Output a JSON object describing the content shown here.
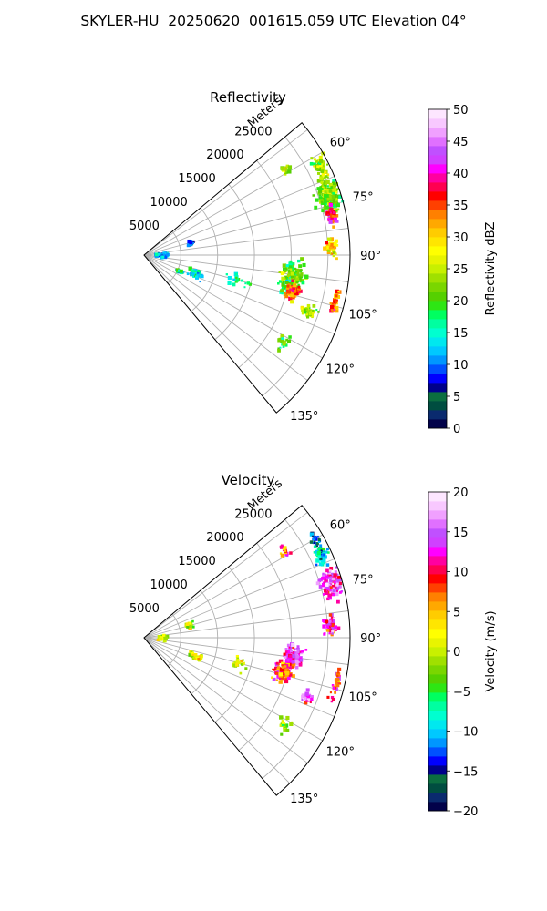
{
  "suptitle": "SKYLER-HU  20250620  001615.059 UTC Elevation 04°",
  "range_label": "Meters",
  "chart_data": [
    {
      "type": "heatmap",
      "title": "Reflectivity",
      "projection": "polar sector (PPI)",
      "theta_range_deg": [
        50,
        140
      ],
      "theta_ticks": [
        "60°",
        "75°",
        "90°",
        "105°",
        "120°",
        "135°"
      ],
      "r_range": [
        0,
        28000
      ],
      "r_ticks": [
        "5000",
        "10000",
        "15000",
        "20000",
        "25000"
      ],
      "grid": true,
      "colorbar": {
        "label": "Reflectivity dBZ",
        "range": [
          0,
          50
        ],
        "ticks": [
          "0",
          "5",
          "10",
          "15",
          "20",
          "25",
          "30",
          "35",
          "40",
          "45",
          "50"
        ],
        "colors": [
          "#02024a",
          "#0a2a6e",
          "#004d40",
          "#0b6e40",
          "#00008b",
          "#0000ff",
          "#0050ff",
          "#0096ff",
          "#00c8ff",
          "#00e8ef",
          "#00ffd0",
          "#00ffa0",
          "#00ff60",
          "#2ee614",
          "#55d000",
          "#7ad600",
          "#a0e000",
          "#c8f000",
          "#e8f400",
          "#ffff00",
          "#ffe600",
          "#ffcc00",
          "#ffa800",
          "#ff8000",
          "#ff4000",
          "#ff0000",
          "#ff0050",
          "#ff00a0",
          "#ff00ff",
          "#d040ff",
          "#c050ff",
          "#e070ff",
          "#f0a0ff",
          "#f8c8ff",
          "#fde6ff"
        ]
      },
      "echoes": [
        {
          "r": 26500,
          "theta": 72,
          "value": 22,
          "spread_r": 1500,
          "spread_t": 5,
          "n": 170
        },
        {
          "r": 26800,
          "theta": 63,
          "value": 24,
          "spread_r": 900,
          "spread_t": 3,
          "n": 60
        },
        {
          "r": 26000,
          "theta": 78,
          "value": 38,
          "spread_r": 700,
          "spread_t": 3,
          "n": 40
        },
        {
          "r": 25500,
          "theta": 88,
          "value": 30,
          "spread_r": 800,
          "spread_t": 3,
          "n": 40
        },
        {
          "r": 22500,
          "theta": 59,
          "value": 24,
          "spread_r": 600,
          "spread_t": 2,
          "n": 18
        },
        {
          "r": 20500,
          "theta": 99,
          "value": 21,
          "spread_r": 1600,
          "spread_t": 6,
          "n": 190
        },
        {
          "r": 20800,
          "theta": 104,
          "value": 34,
          "spread_r": 900,
          "spread_t": 3,
          "n": 70
        },
        {
          "r": 23500,
          "theta": 109,
          "value": 24,
          "spread_r": 1000,
          "spread_t": 2,
          "n": 35
        },
        {
          "r": 26800,
          "theta": 104,
          "value": 34,
          "spread_r": 400,
          "spread_t": 5,
          "n": 30
        },
        {
          "r": 22500,
          "theta": 122,
          "value": 20,
          "spread_r": 800,
          "spread_t": 3,
          "n": 22
        },
        {
          "r": 6500,
          "theta": 75,
          "value": 8,
          "spread_r": 500,
          "spread_t": 4,
          "n": 18
        },
        {
          "r": 2500,
          "theta": 90,
          "value": 12,
          "spread_r": 800,
          "spread_t": 8,
          "n": 30
        },
        {
          "r": 7500,
          "theta": 110,
          "value": 14,
          "spread_r": 1200,
          "spread_t": 4,
          "n": 35
        },
        {
          "r": 5500,
          "theta": 115,
          "value": 16,
          "spread_r": 800,
          "spread_t": 3,
          "n": 14
        },
        {
          "r": 13500,
          "theta": 105,
          "value": 16,
          "spread_r": 1500,
          "spread_t": 4,
          "n": 20
        }
      ]
    },
    {
      "type": "heatmap",
      "title": "Velocity",
      "projection": "polar sector (PPI)",
      "theta_range_deg": [
        50,
        140
      ],
      "theta_ticks": [
        "60°",
        "75°",
        "90°",
        "105°",
        "120°",
        "135°"
      ],
      "r_range": [
        0,
        28000
      ],
      "r_ticks": [
        "5000",
        "10000",
        "15000",
        "20000",
        "25000"
      ],
      "grid": true,
      "colorbar": {
        "label": "Velocity (m/s)",
        "range": [
          -20,
          20
        ],
        "ticks": [
          "−20",
          "−15",
          "−10",
          "−5",
          "0",
          "5",
          "10",
          "15",
          "20"
        ],
        "colors": [
          "#02024a",
          "#0a2a6e",
          "#004d40",
          "#0b6e40",
          "#00008b",
          "#0000ff",
          "#0050ff",
          "#0096ff",
          "#00c8ff",
          "#00e8ef",
          "#00ffd0",
          "#00ffa0",
          "#00ff60",
          "#2ee614",
          "#55d000",
          "#7ad600",
          "#a0e000",
          "#c8f000",
          "#e8f400",
          "#ffff00",
          "#ffe600",
          "#ffcc00",
          "#ffa800",
          "#ff8000",
          "#ff4000",
          "#ff0000",
          "#ff0050",
          "#ff00a0",
          "#ff00ff",
          "#d040ff",
          "#c050ff",
          "#e070ff",
          "#f0a0ff",
          "#f8c8ff",
          "#fde6ff"
        ]
      },
      "echoes": [
        {
          "r": 26500,
          "theta": 74,
          "value": 14,
          "spread_r": 1300,
          "spread_t": 4,
          "n": 150
        },
        {
          "r": 26600,
          "theta": 65,
          "value": -10,
          "spread_r": 800,
          "spread_t": 3,
          "n": 60
        },
        {
          "r": 26800,
          "theta": 60,
          "value": -13,
          "spread_r": 600,
          "spread_t": 2,
          "n": 20
        },
        {
          "r": 25500,
          "theta": 86,
          "value": 12,
          "spread_r": 900,
          "spread_t": 3,
          "n": 50
        },
        {
          "r": 22500,
          "theta": 58,
          "value": 8,
          "spread_r": 600,
          "spread_t": 2,
          "n": 18
        },
        {
          "r": 20500,
          "theta": 97,
          "value": 14,
          "spread_r": 1300,
          "spread_t": 4,
          "n": 150
        },
        {
          "r": 19500,
          "theta": 104,
          "value": 8,
          "spread_r": 1200,
          "spread_t": 4,
          "n": 120
        },
        {
          "r": 23500,
          "theta": 110,
          "value": 14,
          "spread_r": 900,
          "spread_t": 2,
          "n": 30
        },
        {
          "r": 26800,
          "theta": 104,
          "value": 9,
          "spread_r": 400,
          "spread_t": 5,
          "n": 35
        },
        {
          "r": 22500,
          "theta": 122,
          "value": 0,
          "spread_r": 800,
          "spread_t": 3,
          "n": 22
        },
        {
          "r": 6500,
          "theta": 75,
          "value": 0,
          "spread_r": 500,
          "spread_t": 4,
          "n": 18
        },
        {
          "r": 2500,
          "theta": 90,
          "value": 0,
          "spread_r": 800,
          "spread_t": 8,
          "n": 30
        },
        {
          "r": 7500,
          "theta": 110,
          "value": 1,
          "spread_r": 1200,
          "spread_t": 4,
          "n": 35
        },
        {
          "r": 13500,
          "theta": 105,
          "value": 0,
          "spread_r": 1500,
          "spread_t": 4,
          "n": 20
        }
      ]
    }
  ]
}
